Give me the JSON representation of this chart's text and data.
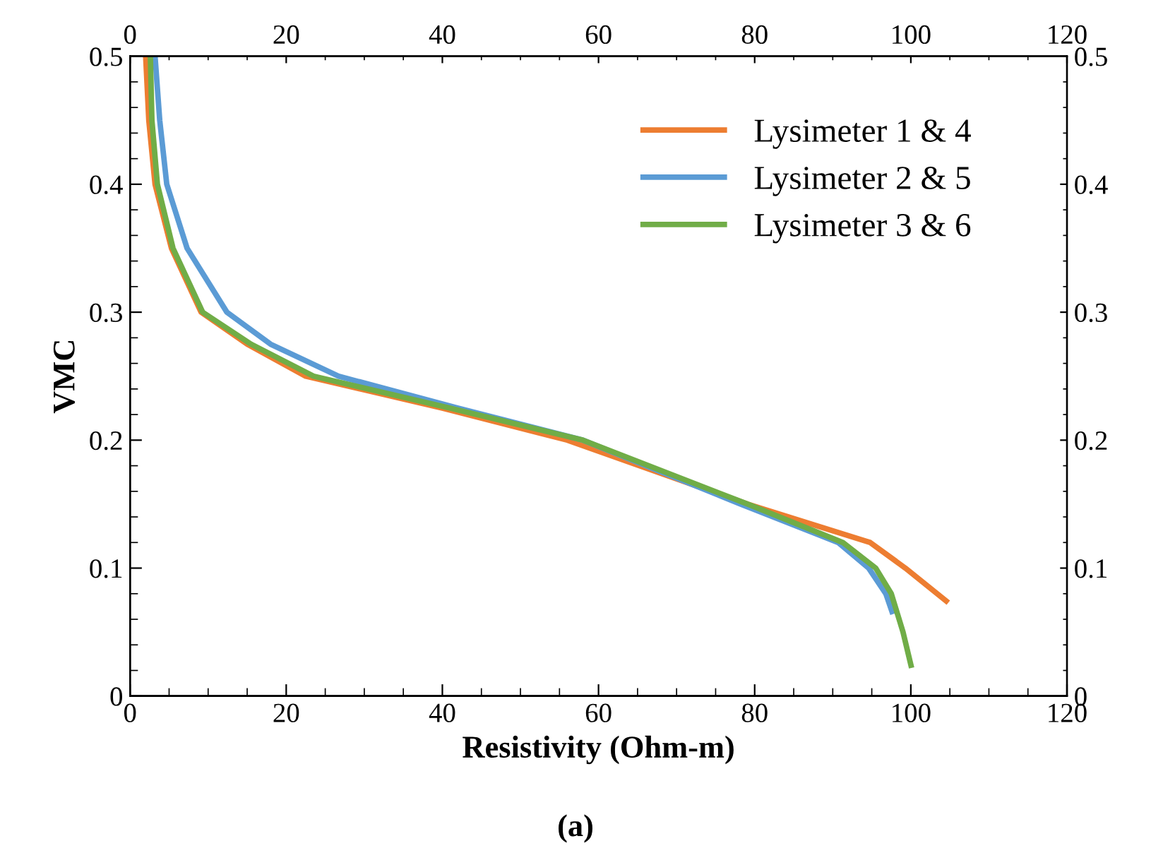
{
  "chart_data": {
    "type": "line",
    "xlabel": "Resistivity (Ohm-m)",
    "ylabel": "VMC",
    "annotations": [
      "(a)"
    ],
    "series": [
      {
        "name": "Lysimeter 1 & 4",
        "color": "#ed7d31",
        "x": [
          2.0,
          2.4,
          3.2,
          5.3,
          9.1,
          15,
          22.5,
          40,
          56,
          79.1,
          94.8,
          99.3,
          104.8
        ],
        "values": [
          0.5,
          0.45,
          0.4,
          0.35,
          0.3,
          0.275,
          0.25,
          0.225,
          0.2,
          0.15,
          0.12,
          0.1,
          0.073
        ]
      },
      {
        "name": "Lysimeter 2 & 5",
        "color": "#5b9bd5",
        "x": [
          3.2,
          3.8,
          4.7,
          7.3,
          12.4,
          18,
          26.7,
          42,
          58,
          78.2,
          90.7,
          94.6,
          96.8,
          97.7
        ],
        "values": [
          0.5,
          0.45,
          0.4,
          0.35,
          0.3,
          0.275,
          0.25,
          0.225,
          0.2,
          0.15,
          0.12,
          0.1,
          0.08,
          0.064
        ]
      },
      {
        "name": "Lysimeter 3 & 6",
        "color": "#70ad47",
        "x": [
          2.6,
          2.8,
          3.5,
          5.5,
          9.3,
          15.5,
          23.5,
          41,
          58,
          79.1,
          91.3,
          95.5,
          97.5,
          99.0,
          100.1
        ],
        "values": [
          0.5,
          0.45,
          0.4,
          0.35,
          0.3,
          0.275,
          0.25,
          0.225,
          0.2,
          0.15,
          0.12,
          0.1,
          0.08,
          0.05,
          0.022
        ]
      }
    ],
    "xlim": [
      0,
      120
    ],
    "xticks": [
      0,
      20,
      40,
      60,
      80,
      100,
      120
    ],
    "x2lim": [
      0,
      120
    ],
    "x2ticks": [
      0,
      20,
      40,
      60,
      80,
      100,
      120
    ],
    "ylim": [
      0,
      0.5
    ],
    "yticks": [
      0,
      0.1,
      0.2,
      0.3,
      0.4,
      0.5
    ],
    "y2lim": [
      0,
      0.5
    ],
    "y2ticks": [
      0,
      0.1,
      0.2,
      0.3,
      0.4,
      0.5
    ],
    "grid": false,
    "legend": "top right",
    "marker": "none",
    "line_style": "solid"
  }
}
